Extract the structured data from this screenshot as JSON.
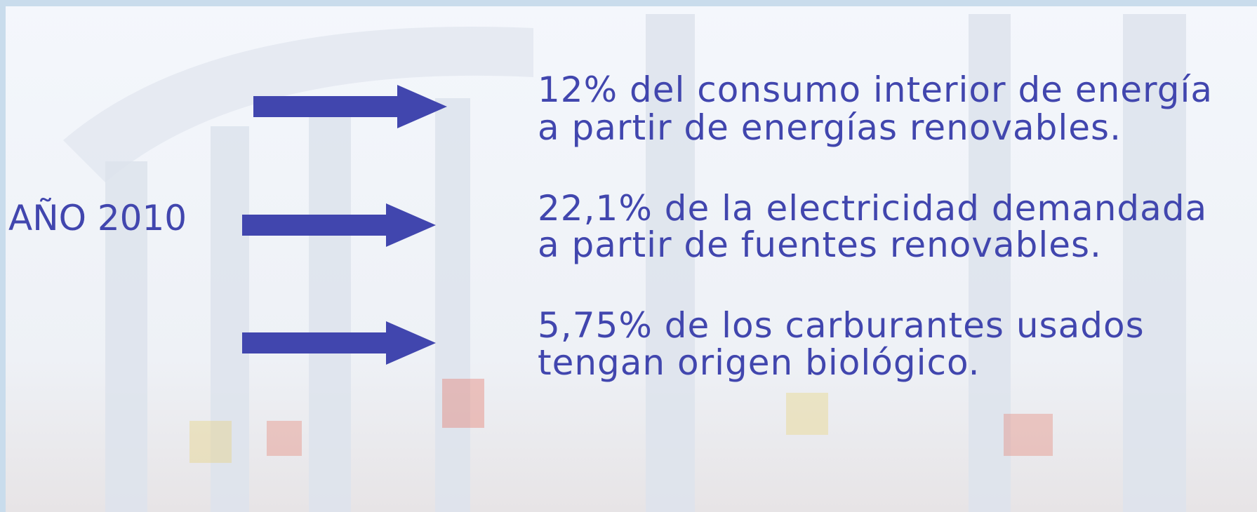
{
  "label": "AÑO 2010",
  "items": [
    {
      "lines": [
        "12% del consumo interior de energía",
        "a partir de energías renovables."
      ]
    },
    {
      "lines": [
        "22,1% de la electricidad demandada",
        "a partir de fuentes renovables."
      ]
    },
    {
      "lines": [
        "5,75% de los carburantes usados",
        "tengan origen biológico."
      ]
    }
  ]
}
